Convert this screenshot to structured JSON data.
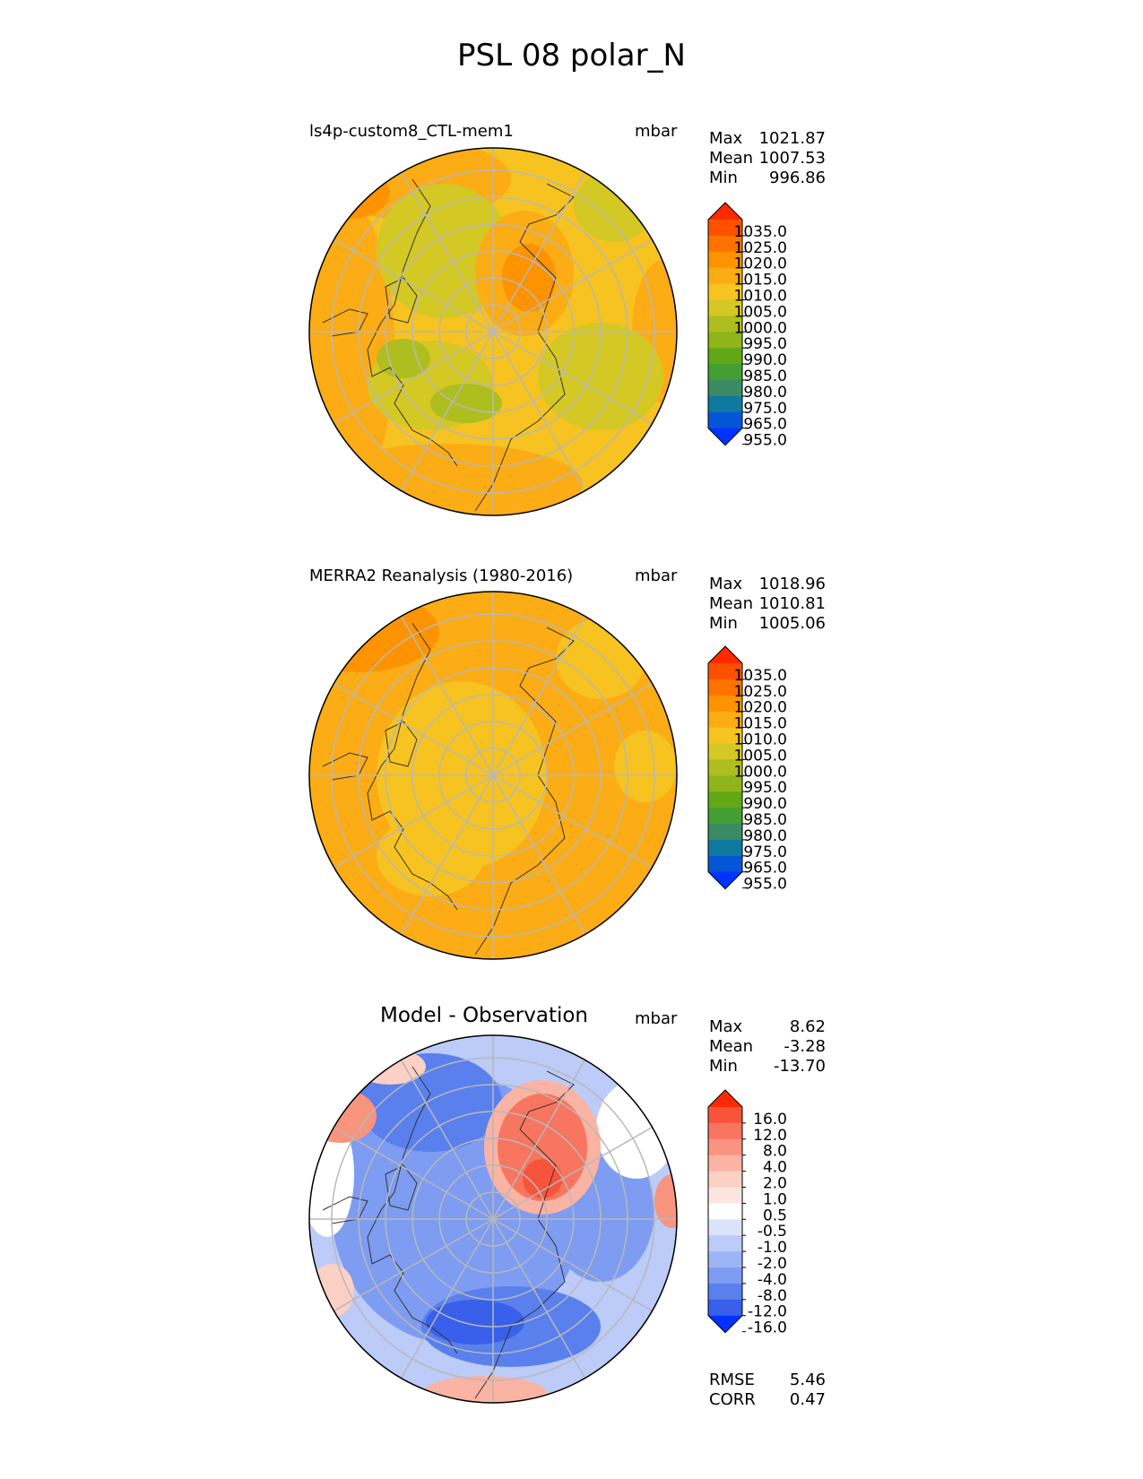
{
  "figure_title": "PSL 08 polar_N",
  "panels": [
    {
      "title": "ls4p-custom8_CTL-mem1",
      "units": "mbar",
      "stats": [
        {
          "label": "Max",
          "value": "1021.87"
        },
        {
          "label": "Mean",
          "value": "1007.53"
        },
        {
          "label": "Min",
          "value": "996.86"
        }
      ]
    },
    {
      "title": "MERRA2 Reanalysis (1980-2016)",
      "units": "mbar",
      "stats": [
        {
          "label": "Max",
          "value": "1018.96"
        },
        {
          "label": "Mean",
          "value": "1010.81"
        },
        {
          "label": "Min",
          "value": "1005.06"
        }
      ]
    },
    {
      "title": "Model - Observation",
      "units": "mbar",
      "stats": [
        {
          "label": "Max",
          "value": "8.62"
        },
        {
          "label": "Mean",
          "value": "-3.28"
        },
        {
          "label": "Min",
          "value": "-13.70"
        }
      ],
      "metrics": [
        {
          "label": "RMSE",
          "value": "5.46"
        },
        {
          "label": "CORR",
          "value": "0.47"
        }
      ]
    }
  ],
  "chart_data": [
    {
      "type": "heatmap",
      "title": "ls4p-custom8_CTL-mem1",
      "projection": "north polar stereographic",
      "variable": "PSL",
      "units": "mbar",
      "colorbar_ticks": [
        "1035.0",
        "1025.0",
        "1020.0",
        "1015.0",
        "1010.0",
        "1005.0",
        "1000.0",
        "995.0",
        "990.0",
        "985.0",
        "980.0",
        "975.0",
        "965.0",
        "955.0"
      ],
      "colorbar_colors": [
        "#ff2a00",
        "#fe5100",
        "#fe7200",
        "#fe9300",
        "#fcac15",
        "#f6c320",
        "#d4c824",
        "#aebe1f",
        "#8fb51a",
        "#62a714",
        "#459e34",
        "#3a8a64",
        "#0f79a0",
        "#0556d6",
        "#0033ff"
      ],
      "colorbar_extend": "both",
      "stats": {
        "max": 1021.87,
        "mean": 1007.53,
        "min": 996.86
      }
    },
    {
      "type": "heatmap",
      "title": "MERRA2 Reanalysis (1980-2016)",
      "projection": "north polar stereographic",
      "variable": "PSL",
      "units": "mbar",
      "colorbar_ticks": [
        "1035.0",
        "1025.0",
        "1020.0",
        "1015.0",
        "1010.0",
        "1005.0",
        "1000.0",
        "995.0",
        "990.0",
        "985.0",
        "980.0",
        "975.0",
        "965.0",
        "955.0"
      ],
      "colorbar_colors": [
        "#ff2a00",
        "#fe5100",
        "#fe7200",
        "#fe9300",
        "#fcac15",
        "#f6c320",
        "#d4c824",
        "#aebe1f",
        "#8fb51a",
        "#62a714",
        "#459e34",
        "#3a8a64",
        "#0f79a0",
        "#0556d6",
        "#0033ff"
      ],
      "colorbar_extend": "both",
      "stats": {
        "max": 1018.96,
        "mean": 1010.81,
        "min": 1005.06
      }
    },
    {
      "type": "heatmap",
      "title": "Model - Observation",
      "projection": "north polar stereographic",
      "variable": "PSL difference",
      "units": "mbar",
      "colorbar_ticks": [
        "16.0",
        "12.0",
        "8.0",
        "4.0",
        "2.0",
        "1.0",
        "0.5",
        "-0.5",
        "-1.0",
        "-2.0",
        "-4.0",
        "-8.0",
        "-12.0",
        "-16.0"
      ],
      "colorbar_colors": [
        "#ff2a00",
        "#f8543b",
        "#f87560",
        "#f9947f",
        "#fbb3a3",
        "#fcd0c5",
        "#fde5df",
        "#ffffff",
        "#dbe3fb",
        "#bccbf8",
        "#9db4f5",
        "#7e9cf2",
        "#5a80ee",
        "#3860ea",
        "#0033ff"
      ],
      "colorbar_extend": "both",
      "stats": {
        "max": 8.62,
        "mean": -3.28,
        "min": -13.7
      },
      "rmse": 5.46,
      "corr": 0.47
    }
  ]
}
